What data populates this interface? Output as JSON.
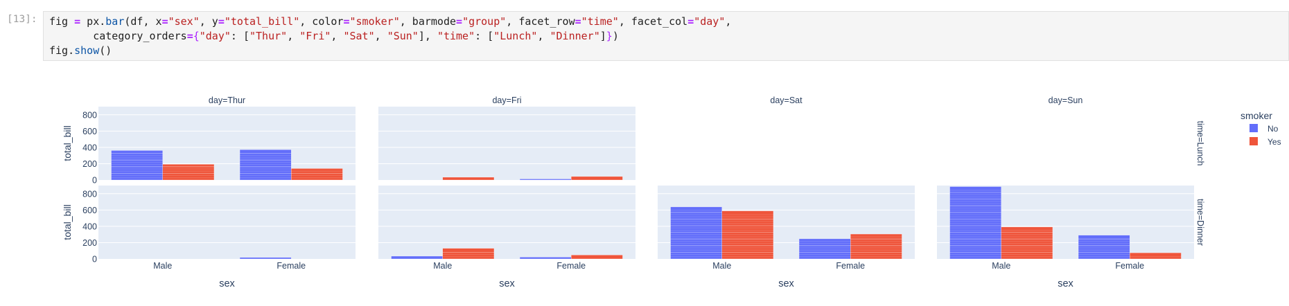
{
  "cell": {
    "prompt": "[13]:",
    "code_lines": [
      [
        [
          "fig ",
          ""
        ],
        [
          "=",
          "kw"
        ],
        [
          " px.",
          ""
        ],
        [
          "bar",
          "fn"
        ],
        [
          "(df, x",
          ""
        ],
        [
          "=",
          "kw"
        ],
        [
          "\"sex\"",
          "str"
        ],
        [
          ", y",
          ""
        ],
        [
          "=",
          "kw"
        ],
        [
          "\"total_bill\"",
          "str"
        ],
        [
          ", color",
          ""
        ],
        [
          "=",
          "kw"
        ],
        [
          "\"smoker\"",
          "str"
        ],
        [
          ", barmode",
          ""
        ],
        [
          "=",
          "kw"
        ],
        [
          "\"group\"",
          "str"
        ],
        [
          ", facet_row",
          ""
        ],
        [
          "=",
          "kw"
        ],
        [
          "\"time\"",
          "str"
        ],
        [
          ", facet_col",
          ""
        ],
        [
          "=",
          "kw"
        ],
        [
          "\"day\"",
          "str"
        ],
        [
          ",",
          ""
        ]
      ],
      [
        [
          "       category_orders",
          ""
        ],
        [
          "=",
          "kw"
        ],
        [
          "{",
          "brk"
        ],
        [
          "\"day\"",
          "str"
        ],
        [
          ": [",
          ""
        ],
        [
          "\"Thur\"",
          "str"
        ],
        [
          ", ",
          ""
        ],
        [
          "\"Fri\"",
          "str"
        ],
        [
          ", ",
          ""
        ],
        [
          "\"Sat\"",
          "str"
        ],
        [
          ", ",
          ""
        ],
        [
          "\"Sun\"",
          "str"
        ],
        [
          "], ",
          ""
        ],
        [
          "\"time\"",
          "str"
        ],
        [
          ": [",
          ""
        ],
        [
          "\"Lunch\"",
          "str"
        ],
        [
          ", ",
          ""
        ],
        [
          "\"Dinner\"",
          "str"
        ],
        [
          "]",
          ""
        ],
        [
          "}",
          "brk"
        ],
        [
          ")",
          ""
        ]
      ],
      [
        [
          "fig.",
          ""
        ],
        [
          "show",
          "fn"
        ],
        [
          "()",
          ""
        ]
      ]
    ]
  },
  "colors": {
    "No": "#636efa",
    "Yes": "#ef553b",
    "plot_bg": "#e5ecf6",
    "text": "#2a3f5f"
  },
  "chart_data": {
    "type": "bar",
    "barmode": "group",
    "x_title": "sex",
    "y_title": "total_bill",
    "categories": [
      "Male",
      "Female"
    ],
    "col_labels": [
      "day=Thur",
      "day=Fri",
      "day=Sat",
      "day=Sun"
    ],
    "row_labels": [
      "time=Lunch",
      "time=Dinner"
    ],
    "ylim": [
      0,
      900
    ],
    "yticks": [
      0,
      200,
      400,
      600,
      800
    ],
    "legend": {
      "title": "smoker",
      "items": [
        "No",
        "Yes"
      ],
      "position": "top-right"
    },
    "facets": [
      {
        "row": 0,
        "col": 0,
        "present": true,
        "series": [
          {
            "name": "No",
            "values": [
              362,
              372
            ]
          },
          {
            "name": "Yes",
            "values": [
              193,
              141
            ]
          }
        ]
      },
      {
        "row": 0,
        "col": 1,
        "present": true,
        "series": [
          {
            "name": "No",
            "values": [
              0,
              13
            ]
          },
          {
            "name": "Yes",
            "values": [
              34,
              43
            ]
          }
        ]
      },
      {
        "row": 0,
        "col": 2,
        "present": false
      },
      {
        "row": 0,
        "col": 3,
        "present": false
      },
      {
        "row": 1,
        "col": 0,
        "present": true,
        "series": [
          {
            "name": "No",
            "values": [
              0,
              18
            ]
          },
          {
            "name": "Yes",
            "values": [
              0,
              0
            ]
          }
        ]
      },
      {
        "row": 1,
        "col": 1,
        "present": true,
        "series": [
          {
            "name": "No",
            "values": [
              34,
              22
            ]
          },
          {
            "name": "Yes",
            "values": [
              130,
              48
            ]
          }
        ]
      },
      {
        "row": 1,
        "col": 2,
        "present": true,
        "series": [
          {
            "name": "No",
            "values": [
              638,
              247
            ]
          },
          {
            "name": "Yes",
            "values": [
              589,
              305
            ]
          }
        ]
      },
      {
        "row": 1,
        "col": 3,
        "present": true,
        "series": [
          {
            "name": "No",
            "values": [
              887,
              291
            ]
          },
          {
            "name": "Yes",
            "values": [
              392,
              75
            ]
          }
        ]
      }
    ]
  }
}
